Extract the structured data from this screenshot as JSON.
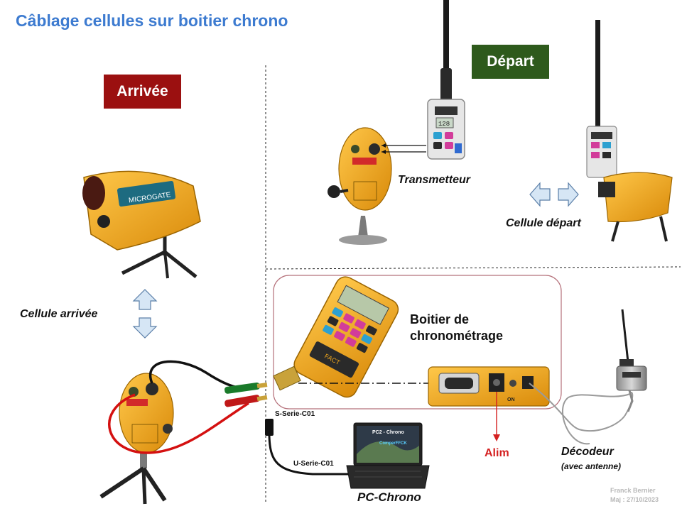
{
  "title": "Câblage cellules sur boitier chrono",
  "tags": {
    "arrivee": {
      "label": "Arrivée",
      "color": "#9b1010"
    },
    "depart": {
      "label": "Départ",
      "color": "#2e5a1c"
    }
  },
  "labels": {
    "transmetteur": "Transmetteur",
    "cellule_depart": "Cellule départ",
    "cellule_arrivee": "Cellule arrivée",
    "boitier_line1": "Boitier de",
    "boitier_line2": "chronométrage",
    "alim": "Alim",
    "decodeur": "Décodeur",
    "decodeur_sub": "(avec antenne)",
    "pc_chrono": "PC-Chrono",
    "s_serie": "S-Serie-C01",
    "u_serie": "U-Serie-C01"
  },
  "device_text": {
    "microgate": "MICROGATE",
    "fact": "FACT",
    "on": "ON",
    "display_digits": "128",
    "pc_screen_title": "PC2 - Chrono",
    "pc_screen_sub": "ComperFFCK"
  },
  "footer": {
    "author": "Franck Bernier",
    "date": "Maj : 27/10/2023"
  },
  "colors": {
    "title": "#3d7bd0",
    "alim": "#d42020",
    "device_yellow": "#f2a81c",
    "arrow_fill": "#d6e6f5",
    "arrow_stroke": "#5b7fa8"
  }
}
